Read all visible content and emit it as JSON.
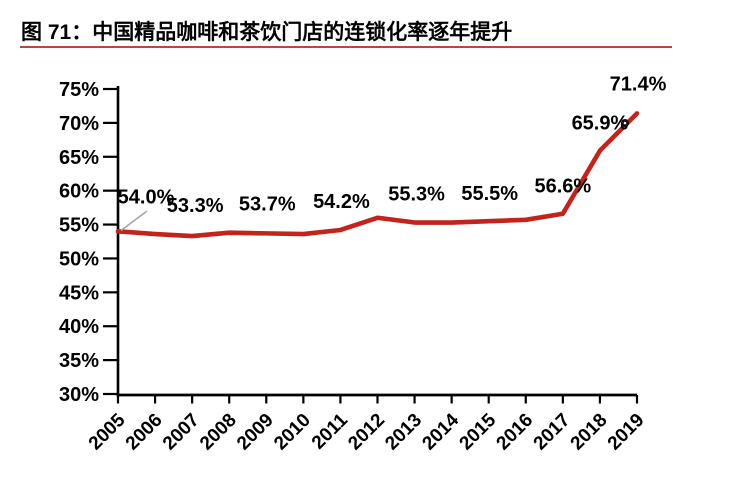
{
  "figure": {
    "title": "图 71：中国精品咖啡和茶饮门店的连锁化率逐年提升"
  },
  "chart_data": {
    "type": "line",
    "title": "中国精品咖啡和茶饮门店的连锁化率逐年提升",
    "categories": [
      "2005",
      "2006",
      "2007",
      "2008",
      "2009",
      "2010",
      "2011",
      "2012",
      "2013",
      "2014",
      "2015",
      "2016",
      "2017",
      "2018",
      "2019"
    ],
    "series": [
      {
        "name": "连锁化率",
        "color": "#c3231a",
        "values": [
          54.0,
          53.6,
          53.3,
          53.8,
          53.7,
          53.6,
          54.2,
          56.0,
          55.3,
          55.3,
          55.5,
          55.7,
          56.6,
          65.9,
          71.4
        ],
        "labeled_points": [
          {
            "index": 0,
            "text": "54.0%"
          },
          {
            "index": 2,
            "text": "53.3%"
          },
          {
            "index": 4,
            "text": "53.7%"
          },
          {
            "index": 6,
            "text": "54.2%"
          },
          {
            "index": 8,
            "text": "55.3%"
          },
          {
            "index": 10,
            "text": "55.5%"
          },
          {
            "index": 12,
            "text": "56.6%"
          },
          {
            "index": 13,
            "text": "65.9%"
          },
          {
            "index": 14,
            "text": "71.4%"
          }
        ]
      }
    ],
    "yticks": [
      "75%",
      "70%",
      "65%",
      "60%",
      "55%",
      "50%",
      "45%",
      "40%",
      "35%",
      "30%"
    ],
    "ylim": [
      30,
      75
    ],
    "ytick_step": 5,
    "xlabel": "",
    "ylabel": "",
    "grid": false,
    "legend": "none",
    "axis_color": "#000000",
    "leader_line_color": "#a6a6a6"
  }
}
